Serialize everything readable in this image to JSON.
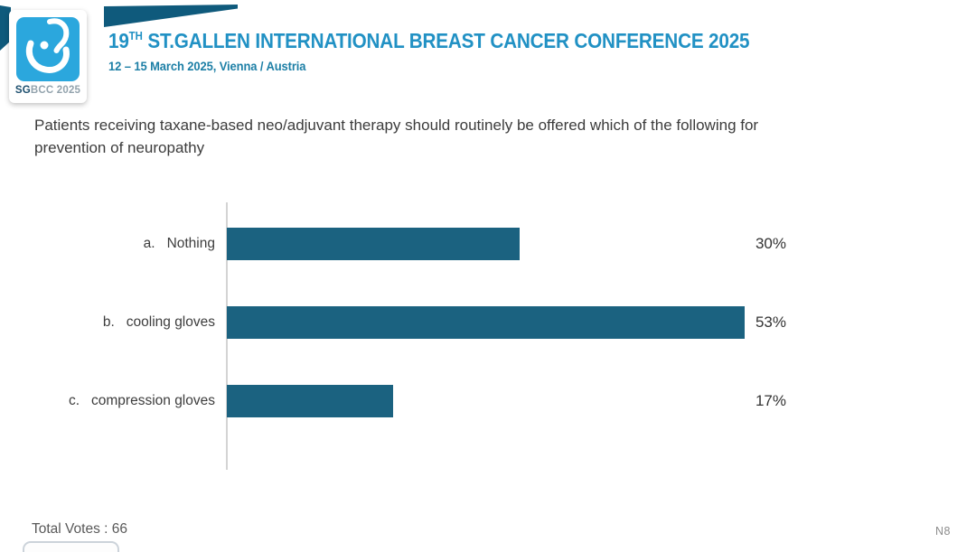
{
  "header": {
    "logo": {
      "icon": "sgbcc-breast-logo",
      "text_bold": "SG",
      "text_rest": "BCC 2025"
    },
    "title_num": "19",
    "title_sup": "TH",
    "title_rest": " ST.GALLEN INTERNATIONAL BREAST CANCER CONFERENCE 2025",
    "subtitle": "12 – 15 March 2025, Vienna / Austria"
  },
  "question": "Patients receiving taxane-based neo/adjuvant therapy should routinely be offered which of the following for prevention of neuropathy",
  "chart_data": {
    "type": "bar",
    "orientation": "horizontal",
    "title": "",
    "xlabel": "",
    "ylabel": "",
    "xlim": [
      0,
      55
    ],
    "grid": false,
    "legend": "none",
    "categories": [
      "a. Nothing",
      "b. cooling gloves",
      "c. compression gloves"
    ],
    "values": [
      30,
      53,
      17
    ],
    "rows": [
      {
        "prefix": "a.",
        "label": "Nothing",
        "value": 30,
        "value_label": "30%"
      },
      {
        "prefix": "b.",
        "label": "cooling gloves",
        "value": 53,
        "value_label": "53%"
      },
      {
        "prefix": "c.",
        "label": "compression gloves",
        "value": 17,
        "value_label": "17%"
      }
    ]
  },
  "footer": {
    "total_votes": "Total Votes : 66",
    "slide_code": "N8"
  },
  "colors": {
    "bar": "#1b6280",
    "ribbon": "#0f5a7c",
    "logo_blue": "#2ba7dd",
    "title_blue": "#2191c4",
    "subtitle_blue": "#1d7fa6",
    "axis": "#d4d4d4"
  }
}
